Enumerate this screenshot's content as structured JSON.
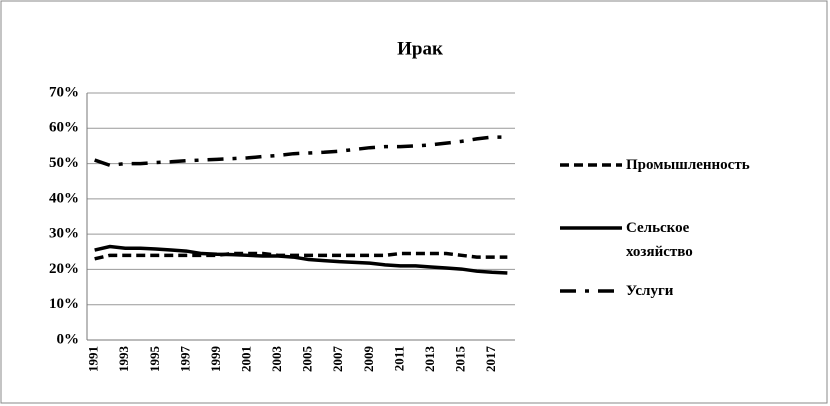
{
  "chart_data": {
    "type": "line",
    "title": "Ирак",
    "categories": [
      "1991",
      null,
      "1993",
      null,
      "1995",
      null,
      "1997",
      null,
      "1999",
      null,
      "2001",
      null,
      "2003",
      null,
      "2005",
      null,
      "2007",
      null,
      "2009",
      null,
      "2011",
      null,
      "2013",
      null,
      "2015",
      null,
      "2017",
      null
    ],
    "series": [
      {
        "name": "Промышленность",
        "color": "#000000",
        "dash": "dashed",
        "values": [
          23,
          24,
          24,
          24,
          24,
          24,
          24,
          24,
          24,
          24.5,
          24.5,
          24.5,
          24,
          24,
          24,
          24,
          24,
          24,
          24,
          24,
          24.5,
          24.5,
          24.5,
          24.5,
          24,
          23.5,
          23.5,
          23.5
        ]
      },
      {
        "name": "Сельское хозяйство",
        "color": "#000000",
        "dash": "solid",
        "values": [
          25.5,
          26.5,
          26,
          26,
          25.8,
          25.5,
          25.2,
          24.5,
          24.3,
          24.2,
          24,
          23.8,
          23.8,
          23.5,
          22.8,
          22.5,
          22.2,
          22,
          21.8,
          21.3,
          21,
          21,
          20.7,
          20.4,
          20.1,
          19.5,
          19.2,
          19
        ]
      },
      {
        "name": "Услуги",
        "color": "#000000",
        "dash": "dashdot",
        "values": [
          51,
          49.5,
          50,
          50,
          50.3,
          50.5,
          50.8,
          51,
          51.2,
          51.4,
          51.6,
          52,
          52.3,
          52.8,
          53,
          53.2,
          53.5,
          54,
          54.5,
          54.8,
          54.8,
          55,
          55.3,
          55.8,
          56.3,
          57,
          57.5,
          57.5
        ]
      }
    ],
    "ylim": [
      0,
      70
    ],
    "yticks": [
      {
        "value": 0,
        "label": "0%"
      },
      {
        "value": 10,
        "label": "10%"
      },
      {
        "value": 20,
        "label": "20%"
      },
      {
        "value": 30,
        "label": "30%"
      },
      {
        "value": 40,
        "label": "40%"
      },
      {
        "value": 50,
        "label": "50%"
      },
      {
        "value": 60,
        "label": "60%"
      },
      {
        "value": 70,
        "label": "70%"
      }
    ],
    "grid": true,
    "legend": "right"
  }
}
